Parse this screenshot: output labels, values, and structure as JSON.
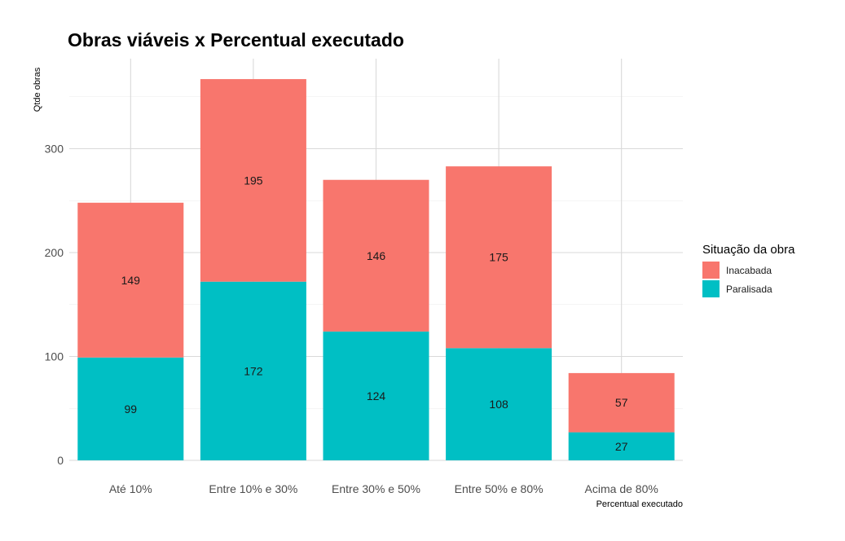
{
  "chart_data": {
    "type": "bar",
    "stacked": true,
    "title": "Obras viáveis x Percentual executado",
    "xlabel": "Percentual executado",
    "ylabel": "Qtde obras",
    "categories": [
      "Até 10%",
      "Entre 10% e 30%",
      "Entre 30% e 50%",
      "Entre 50% e 80%",
      "Acima de 80%"
    ],
    "series": [
      {
        "name": "Paralisada",
        "values": [
          99,
          172,
          124,
          108,
          27
        ],
        "color": "#00BFC4"
      },
      {
        "name": "Inacabada",
        "values": [
          149,
          195,
          146,
          175,
          57
        ],
        "color": "#F8766D"
      }
    ],
    "ylim": [
      0,
      380
    ],
    "yticks": [
      0,
      100,
      200,
      300
    ],
    "grid": true,
    "legend": {
      "title": "Situação da obra",
      "position": "right",
      "order": [
        "Inacabada",
        "Paralisada"
      ]
    }
  }
}
